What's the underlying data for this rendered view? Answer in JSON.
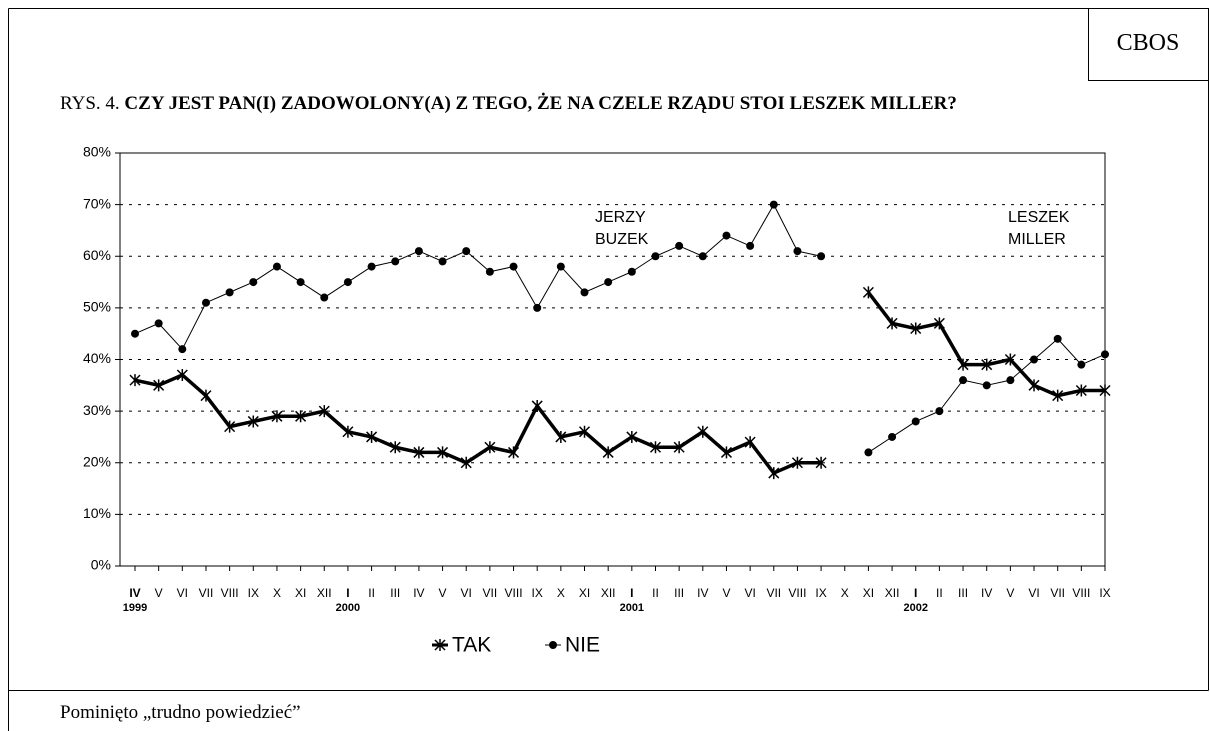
{
  "chart_data": {
    "type": "line",
    "source": "CBOS",
    "label": "RYS. 4.",
    "title": "CZY JEST PAN(I) ZADOWOLONY(A) Z TEGO, ŻE NA CZELE RZĄDU STOI LESZEK MILLER?",
    "footnote": "Pominięto „trudno powiedzieć”",
    "categories": [
      "IV",
      "V",
      "VI",
      "VII",
      "VIII",
      "IX",
      "X",
      "XI",
      "XII",
      "I",
      "II",
      "III",
      "IV",
      "V",
      "VI",
      "VII",
      "VIII",
      "IX",
      "X",
      "XI",
      "XII",
      "I",
      "II",
      "III",
      "IV",
      "V",
      "VI",
      "VII",
      "VIII",
      "IX",
      "X",
      "XI",
      "XII",
      "I",
      "II",
      "III",
      "IV",
      "V",
      "VI",
      "VII",
      "VIII",
      "IX"
    ],
    "category_years": [
      "1999",
      null,
      null,
      null,
      null,
      null,
      null,
      null,
      null,
      "2000",
      null,
      null,
      null,
      null,
      null,
      null,
      null,
      null,
      null,
      null,
      null,
      "2001",
      null,
      null,
      null,
      null,
      null,
      null,
      null,
      null,
      null,
      null,
      null,
      "2002",
      null,
      null,
      null,
      null,
      null,
      null,
      null,
      null
    ],
    "series": [
      {
        "name": "TAK",
        "color": "#000000",
        "marker": "star",
        "values": [
          36,
          35,
          37,
          33,
          27,
          28,
          29,
          29,
          30,
          26,
          25,
          23,
          22,
          22,
          20,
          23,
          22,
          31,
          25,
          26,
          22,
          25,
          23,
          23,
          26,
          22,
          24,
          18,
          20,
          20,
          null,
          53,
          47,
          46,
          47,
          39,
          39,
          40,
          35,
          33,
          34,
          34
        ]
      },
      {
        "name": "NIE",
        "color": "#000000",
        "marker": "circle",
        "values": [
          45,
          47,
          42,
          51,
          53,
          55,
          58,
          55,
          52,
          55,
          58,
          59,
          61,
          59,
          61,
          57,
          58,
          50,
          58,
          53,
          55,
          57,
          60,
          62,
          60,
          64,
          62,
          70,
          61,
          60,
          null,
          22,
          25,
          28,
          30,
          36,
          35,
          36,
          40,
          44,
          39,
          41
        ]
      }
    ],
    "annotations": [
      {
        "lines": [
          "JERZY",
          "BUZEK"
        ]
      },
      {
        "lines": [
          "LESZEK",
          "MILLER"
        ]
      }
    ],
    "ylim": [
      0,
      80
    ],
    "yticks": [
      {
        "value": 0,
        "label": "0%"
      },
      {
        "value": 10,
        "label": "10%"
      },
      {
        "value": 20,
        "label": "20%"
      },
      {
        "value": 30,
        "label": "30%"
      },
      {
        "value": 40,
        "label": "40%"
      },
      {
        "value": 50,
        "label": "50%"
      },
      {
        "value": 60,
        "label": "60%"
      },
      {
        "value": 70,
        "label": "70%"
      },
      {
        "value": 80,
        "label": "80%"
      }
    ],
    "grid": true,
    "legend": "bottom"
  }
}
